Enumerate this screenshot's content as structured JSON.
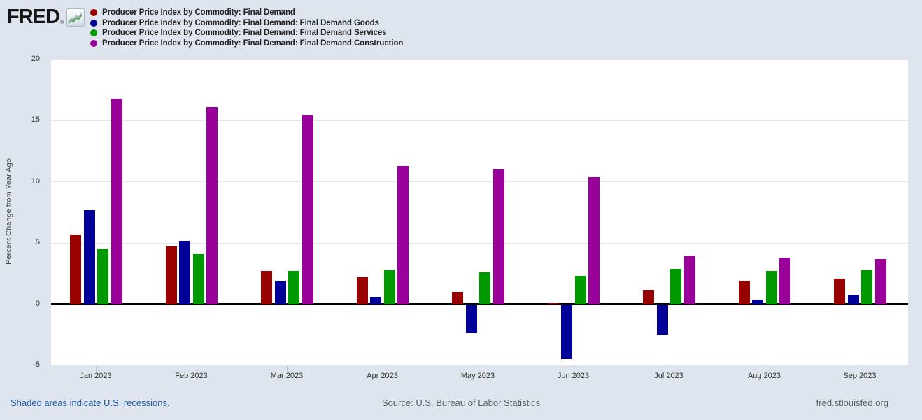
{
  "header": {
    "logo_text": "FRED",
    "logo_registered": "®"
  },
  "chart_data": {
    "type": "bar",
    "title": "",
    "ylabel": "Percent Change from Year Ago",
    "xlabel": "",
    "ylim": [
      -5,
      20
    ],
    "yticks": [
      20,
      15,
      10,
      5,
      0,
      -5
    ],
    "grid": "horizontal",
    "legend_position": "top-left",
    "categories": [
      "Jan 2023",
      "Feb 2023",
      "Mar 2023",
      "Apr 2023",
      "May 2023",
      "Jun 2023",
      "Jul 2023",
      "Aug 2023",
      "Sep 2023"
    ],
    "series": [
      {
        "name": "Producer Price Index by Commodity: Final Demand",
        "color": "#990000",
        "values": [
          5.7,
          4.7,
          2.7,
          2.2,
          1.0,
          0.1,
          1.1,
          1.9,
          2.1
        ]
      },
      {
        "name": "Producer Price Index by Commodity: Final Demand: Final Demand Goods",
        "color": "#000099",
        "values": [
          7.7,
          5.2,
          1.9,
          0.6,
          -2.3,
          -4.4,
          -2.4,
          0.4,
          0.8
        ]
      },
      {
        "name": "Producer Price Index by Commodity: Final Demand: Final Demand Services",
        "color": "#009900",
        "values": [
          4.5,
          4.1,
          2.7,
          2.8,
          2.6,
          2.3,
          2.9,
          2.7,
          2.8
        ]
      },
      {
        "name": "Producer Price Index by Commodity: Final Demand: Final Demand Construction",
        "color": "#990099",
        "values": [
          16.8,
          16.1,
          15.5,
          11.3,
          11.0,
          10.4,
          3.9,
          3.8,
          3.7
        ]
      }
    ]
  },
  "palette": {
    "background": "#dee5ee",
    "plot_background": "#ffffff",
    "gridline": "#e7e7e7",
    "zero_line": "#000000",
    "link_blue": "#2458a6",
    "footer_gray": "#5d5d5d"
  },
  "footer": {
    "recession_note": "Shaded areas indicate U.S. recessions.",
    "source": "Source: U.S. Bureau of Labor Statistics",
    "site": "fred.stlouisfed.org"
  }
}
